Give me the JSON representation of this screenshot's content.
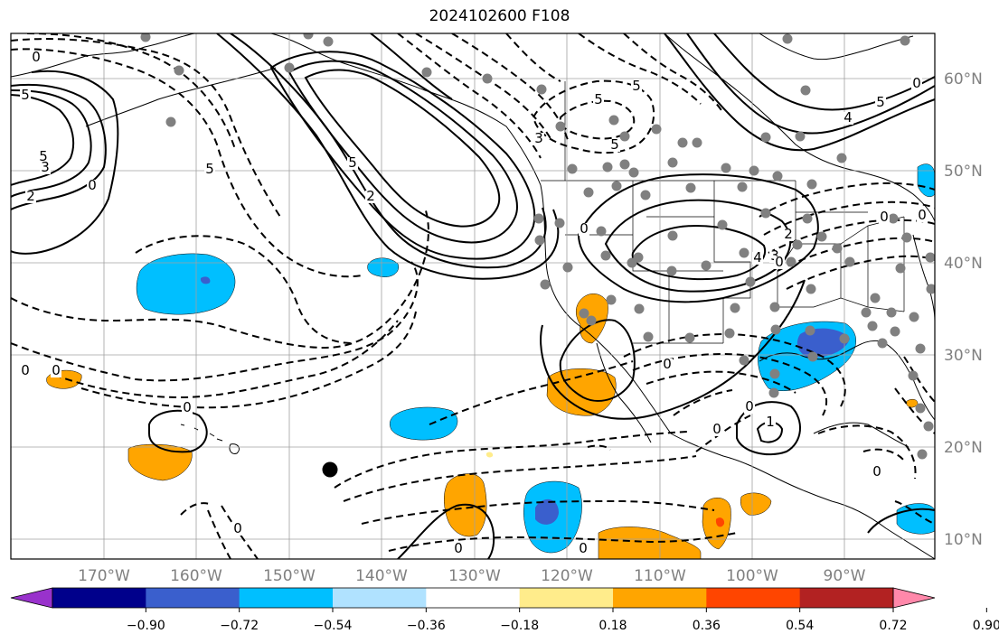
{
  "title": "2024102600 F108",
  "lon_labels": [
    "170°W",
    "160°W",
    "150°W",
    "140°W",
    "130°W",
    "120°W",
    "110°W",
    "100°W",
    "90°W"
  ],
  "lat_labels": [
    "60°N",
    "50°N",
    "40°N",
    "30°N",
    "20°N",
    "10°N"
  ],
  "colorbar": {
    "tick_labels": [
      "−0.90",
      "−0.72",
      "−0.54",
      "−0.36",
      "−0.18",
      "0.18",
      "0.36",
      "0.54",
      "0.72",
      "0.90"
    ],
    "colors": [
      "#9932cc",
      "#00008b",
      "#3a5fcd",
      "#00bfff",
      "#b0e2ff",
      "#ffffff",
      "#ffec8b",
      "#ffa500",
      "#ff4500",
      "#b22222",
      "#ff88aa"
    ]
  },
  "contour_labels": [
    "0",
    "5",
    "5",
    "3",
    "2",
    "0",
    "5",
    "5",
    "2",
    "5",
    "5",
    "3",
    "4",
    "5",
    "0",
    "5",
    "4",
    "3",
    "2",
    "0",
    "0",
    "0",
    "0",
    "0",
    "0",
    "0",
    "0",
    "1",
    "0",
    "0",
    "0",
    "0",
    "0",
    "0"
  ],
  "shading_colors": {
    "light_blue": "#00bfff",
    "blue": "#3a5fcd",
    "orange": "#ffa500",
    "red": "#ff4500"
  },
  "observation_marker_color": "#808080"
}
